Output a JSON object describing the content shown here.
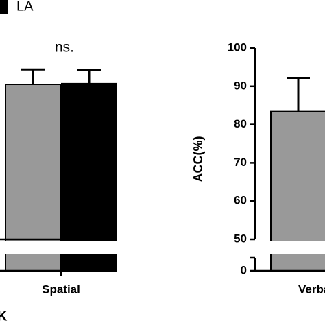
{
  "chart_data": {
    "type": "bar",
    "categories": [
      "Spatial",
      "Verbal"
    ],
    "series": [
      {
        "color": "#999999",
        "values": [
          90.5,
          83.4
        ],
        "errors": [
          3.9,
          8.8
        ]
      },
      {
        "name": "LA",
        "color": "#000000",
        "values": [
          90.7,
          null
        ],
        "errors": [
          3.6,
          null
        ]
      }
    ],
    "ylabel": "ACC(%)",
    "ylim": [
      0,
      100
    ],
    "yticks": [
      0,
      50,
      60,
      70,
      80,
      90,
      100
    ],
    "y_break": [
      0,
      50
    ],
    "legend": "top-left",
    "annotations": [
      "ns.",
      "K"
    ]
  }
}
